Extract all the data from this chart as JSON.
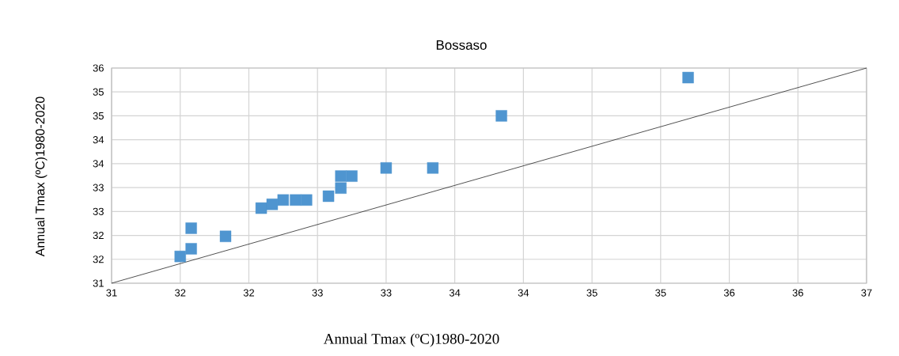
{
  "chart_data": {
    "type": "scatter",
    "title": "Bossaso",
    "xlabel": "Annual Tmax (ºC)1980-2020",
    "ylabel": "Annual Tmax (ºC)1980-2020",
    "xlim": [
      31,
      36.5
    ],
    "ylim": [
      31,
      35.5
    ],
    "xticks": [
      {
        "value": 31,
        "label": "31"
      },
      {
        "value": 31.5,
        "label": "32"
      },
      {
        "value": 32,
        "label": "32"
      },
      {
        "value": 32.5,
        "label": "33"
      },
      {
        "value": 33,
        "label": "33"
      },
      {
        "value": 33.5,
        "label": "34"
      },
      {
        "value": 34,
        "label": "34"
      },
      {
        "value": 34.5,
        "label": "35"
      },
      {
        "value": 35,
        "label": "35"
      },
      {
        "value": 35.5,
        "label": "36"
      },
      {
        "value": 36,
        "label": "36"
      },
      {
        "value": 36.5,
        "label": "37"
      }
    ],
    "yticks": [
      {
        "value": 31,
        "label": "31"
      },
      {
        "value": 31.5,
        "label": "32"
      },
      {
        "value": 32,
        "label": "32"
      },
      {
        "value": 32.5,
        "label": "33"
      },
      {
        "value": 33,
        "label": "33"
      },
      {
        "value": 33.5,
        "label": "34"
      },
      {
        "value": 34,
        "label": "34"
      },
      {
        "value": 34.5,
        "label": "35"
      },
      {
        "value": 35,
        "label": "35"
      },
      {
        "value": 35.5,
        "label": "36"
      }
    ],
    "grid": true,
    "marker": "square",
    "series": [
      {
        "color": "#4f95d0",
        "x": [
          31.5,
          31.58,
          31.58,
          31.83,
          32.09,
          32.17,
          32.25,
          32.34,
          32.42,
          32.58,
          32.67,
          32.67,
          32.75,
          33.0,
          33.34,
          33.84,
          35.2
        ],
        "values": [
          31.56,
          31.72,
          32.15,
          31.98,
          32.57,
          32.65,
          32.74,
          32.74,
          32.74,
          32.82,
          32.99,
          33.24,
          33.24,
          33.41,
          33.41,
          34.5,
          35.3
        ]
      },
      {
        "type": "line",
        "color": "#262626",
        "marker": "none",
        "x": [
          31,
          36.5
        ],
        "values": [
          31,
          35.5
        ]
      }
    ]
  }
}
